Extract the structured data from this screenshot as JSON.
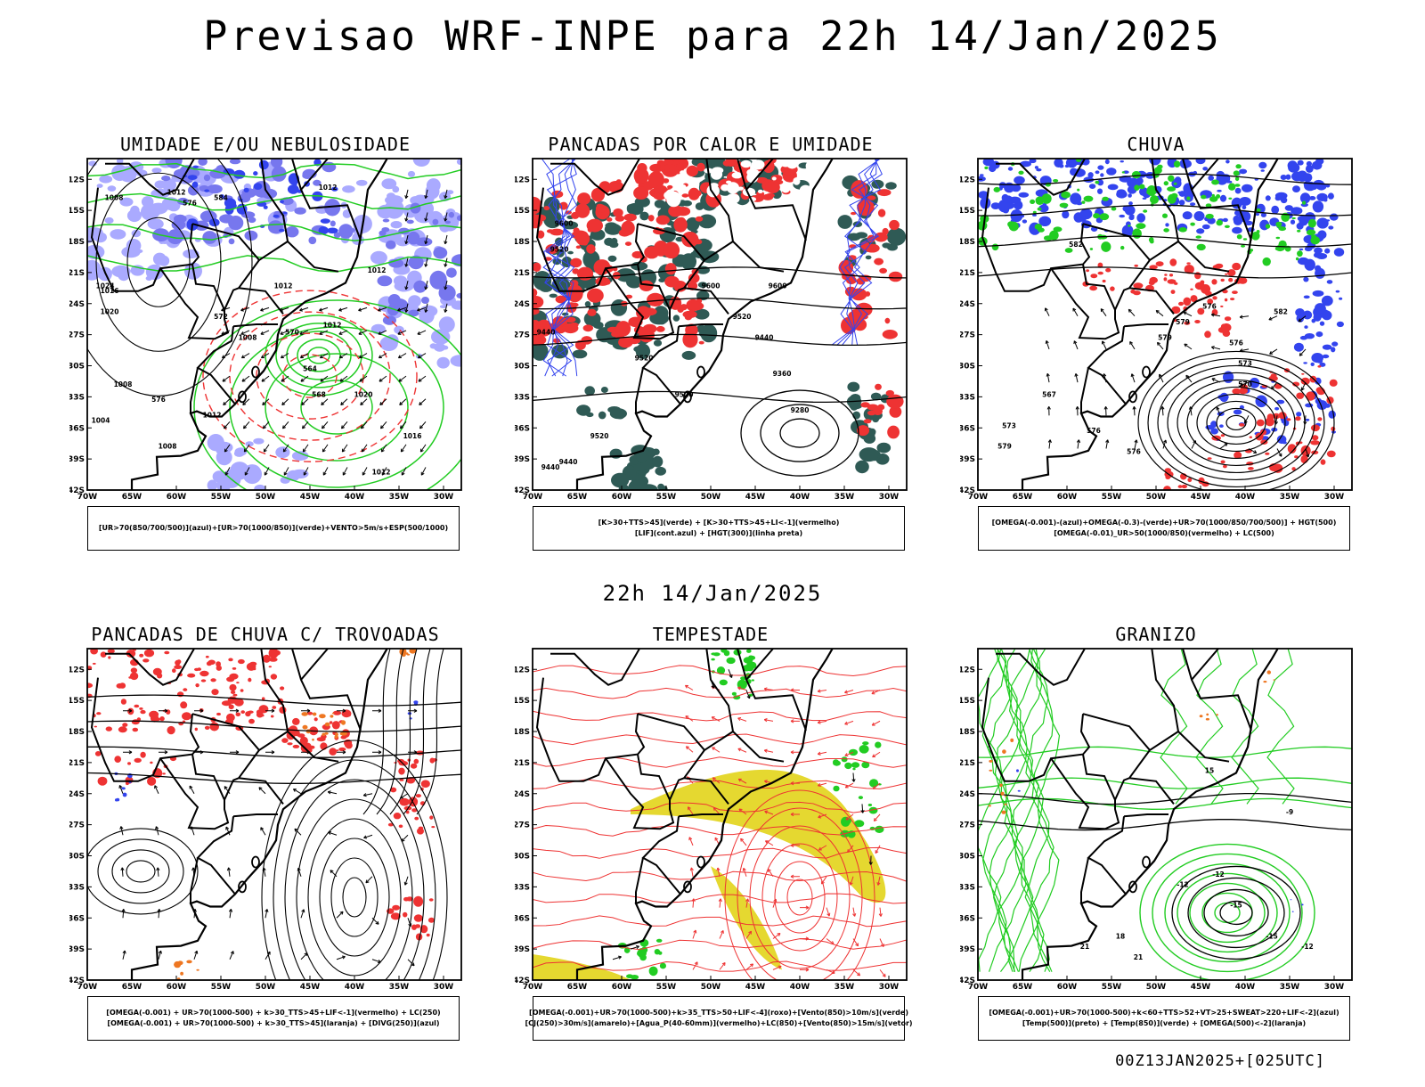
{
  "title": "Previsao WRF-INPE  para 22h 14/Jan/2025",
  "mid_title": "22h 14/Jan/2025",
  "footer": "00Z13JAN2025+[025UTC]",
  "axes": {
    "lat_ticks": [
      "12S",
      "15S",
      "18S",
      "21S",
      "24S",
      "27S",
      "30S",
      "33S",
      "36S",
      "39S",
      "42S"
    ],
    "lon_ticks": [
      "70W",
      "65W",
      "60W",
      "55W",
      "50W",
      "45W",
      "40W",
      "35W",
      "30W"
    ]
  },
  "colors": {
    "blue": "#3344ee",
    "light_blue": "#aaaaff",
    "mid_blue": "#7777ee",
    "green": "#22cc22",
    "red": "#ee3333",
    "dark_teal": "#2f5a55",
    "orange": "#ee7722",
    "yellow": "#e5d830",
    "black": "#000000"
  },
  "panels": [
    {
      "id": "p1",
      "title": "UMIDADE E/OU NEBULOSIDADE",
      "legend": [
        "[UR>70(850/700/500)](azul)+[UR>70(1000/850)](verde)+VENTO>5m/s+ESP(500/1000)"
      ],
      "contour_labels": [
        "1012",
        "1008",
        "1012",
        "1012",
        "1012",
        "1016",
        "1020",
        "1024",
        "1008",
        "1004",
        "1008",
        "1012",
        "1008",
        "1012",
        "1016",
        "1012",
        "1020",
        "584",
        "576",
        "572",
        "576",
        "570",
        "564",
        "568"
      ]
    },
    {
      "id": "p2",
      "title": "PANCADAS POR CALOR E UMIDADE",
      "legend": [
        "[K>30+TTS>45](verde) + [K>30+TTS>45+LI<-1](vermelho)",
        "[LIF](cont.azul) + [HGT(300)](linha preta)"
      ],
      "contour_labels": [
        "9600",
        "9520",
        "9600",
        "9440",
        "9520",
        "9600",
        "9520",
        "9440",
        "9360",
        "9280",
        "9520",
        "9440",
        "9520",
        "9440"
      ]
    },
    {
      "id": "p3",
      "title": "CHUVA",
      "legend": [
        "[OMEGA(-0.001)-(azul)+OMEGA(-0.3)-(verde)+UR>70(1000/850/700/500)] + HGT(500)",
        "[OMEGA(-0.01)_UR>50(1000/850)(vermelho) + LC(500)"
      ],
      "contour_labels": [
        "582",
        "579",
        "579",
        "576",
        "576",
        "573",
        "570",
        "567",
        "576",
        "573",
        "579",
        "576",
        "582"
      ]
    },
    {
      "id": "p4",
      "title": "PANCADAS DE CHUVA C/ TROVOADAS",
      "legend": [
        "[OMEGA(-0.001) + UR>70(1000-500) + k>30_TTS>45+LIF<-1](vermelho) + LC(250)",
        "[OMEGA(-0.001) + UR>70(1000-500) + k>30_TTS>45](laranja) + [DIVG(250)](azul)"
      ]
    },
    {
      "id": "p5",
      "title": "TEMPESTADE",
      "legend": [
        "[OMEGA(-0.001)+UR>70(1000-500)+k>35_TTS>50+LIF<-4](roxo)+[Vento(850)>10m/s](verde)",
        "[CJ(250)>30m/s](amarelo)+[Agua_P(40-60mm)](vermelho)+LC(850)+[Vento(850)>15m/s](vetor)"
      ]
    },
    {
      "id": "p6",
      "title": "GRANIZO",
      "legend": [
        "[OMEGA(-0.001)+UR>70(1000-500)+k<60+TTS>52+VT>25+SWEAT>220+LIF<-2](azul)",
        "[Temp(500)](preto) + [Temp(850)](verde) + [OMEGA(500)<-2](laranja)"
      ],
      "contour_labels": [
        "-12",
        "-15",
        "-12",
        "-9",
        "-15",
        "-12",
        "18",
        "21",
        "21",
        "15"
      ]
    }
  ]
}
